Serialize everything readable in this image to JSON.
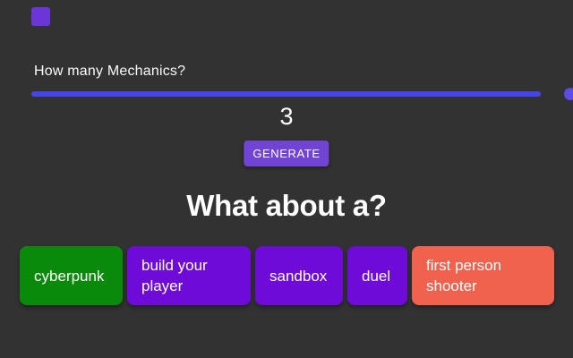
{
  "colors": {
    "background": "#323232",
    "logo_square": "#6B35D8",
    "slider_track": "#4645E8",
    "slider_thumb": "#5B4BE9",
    "generate_button": "#7144D4"
  },
  "mechanics": {
    "question_label": "How many Mechanics?",
    "slider": {
      "value": 3,
      "position": "max",
      "track_color": "#4645E8"
    },
    "value_display": "3"
  },
  "generate_button": {
    "label": "GENERATE",
    "color": "#7144D4"
  },
  "results": {
    "heading": "What about a?",
    "chips": [
      {
        "label": "cyberpunk",
        "color": "#0A8A0A"
      },
      {
        "label": "build your player",
        "color": "#6E0BD9"
      },
      {
        "label": "sandbox",
        "color": "#6E0BD9"
      },
      {
        "label": "duel",
        "color": "#6E0BD9"
      },
      {
        "label": "first person shooter",
        "color": "#F0624E"
      }
    ]
  }
}
